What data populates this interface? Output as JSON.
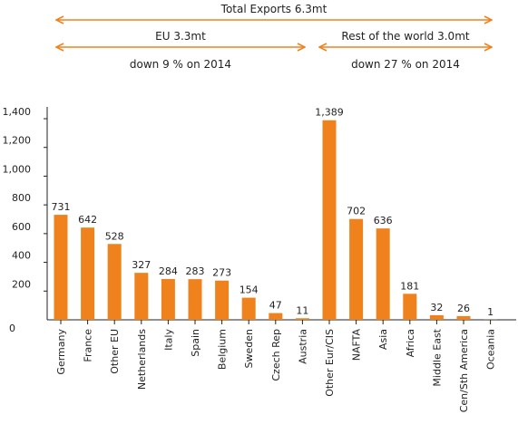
{
  "header": {
    "total_label": "Total Exports 6.3mt",
    "eu_label": "EU 3.3mt",
    "eu_change": "down 9 % on 2014",
    "row_label": "Rest of the world 3.0mt",
    "row_change": "down 27 % on 2014"
  },
  "colors": {
    "bar": "#f0821e",
    "arrow": "#f0821e",
    "axis": "#222222"
  },
  "chart_data": {
    "type": "bar",
    "title": "",
    "xlabel": "",
    "ylabel": "",
    "ylim": [
      0,
      1600
    ],
    "yticks": [
      0,
      200,
      400,
      600,
      800,
      1000,
      1200,
      1400
    ],
    "ytick_labels": [
      "0",
      "200",
      "400",
      "600",
      "800",
      "1,000",
      "1,200",
      "1,400"
    ],
    "categories": [
      "Germany",
      "France",
      "Other EU",
      "Netherlands",
      "Italy",
      "Spain",
      "Belgium",
      "Sweden",
      "Czech Rep",
      "Austria",
      "Other Eur/CIS",
      "NAFTA",
      "Asia",
      "Africa",
      "Middle East",
      "Cen/Sth America",
      "Oceania"
    ],
    "values": [
      731,
      642,
      528,
      327,
      284,
      283,
      273,
      154,
      47,
      11,
      1389,
      702,
      636,
      181,
      32,
      26,
      1
    ],
    "value_labels": [
      "731",
      "642",
      "528",
      "327",
      "284",
      "283",
      "273",
      "154",
      "47",
      "11",
      "1,389",
      "702",
      "636",
      "181",
      "32",
      "26",
      "1"
    ],
    "grid": false,
    "legend": "none"
  }
}
